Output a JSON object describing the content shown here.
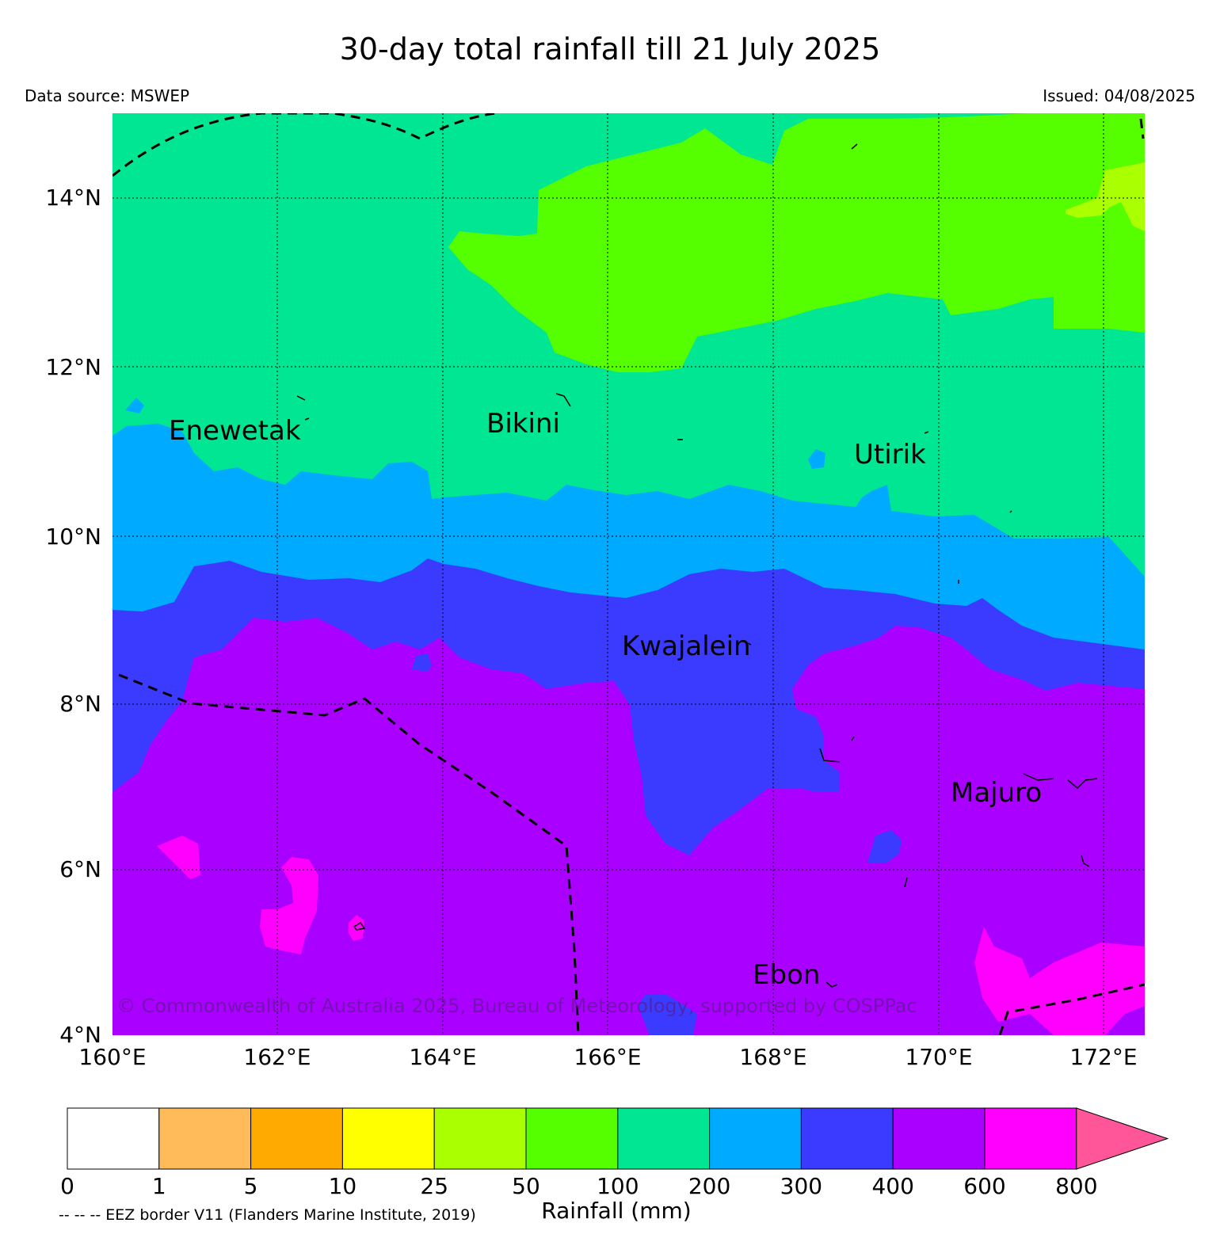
{
  "title": "30-day total rainfall till 21 July 2025",
  "data_source": "Data source: MSWEP",
  "issued": "Issued: 04/08/2025",
  "copyright": "© Commonwealth of Australia 2025, Bureau of Meteorology, supported by COSPPac",
  "eez_note": "-- -- -- EEZ border V11 (Flanders Marine Institute, 2019)",
  "map": {
    "lon_range": [
      160,
      172.5
    ],
    "lat_range": [
      4,
      15
    ],
    "lat_labels": [
      "14°N",
      "12°N",
      "10°N",
      "8°N",
      "6°N",
      "4°N"
    ],
    "lon_labels": [
      "160°E",
      "162°E",
      "164°E",
      "166°E",
      "168°E",
      "170°E",
      "172°E"
    ],
    "places": [
      "Enewetak",
      "Bikini",
      "Utirik",
      "Kwajalein",
      "Majuro",
      "Ebon"
    ]
  },
  "colorbar": {
    "label": "Rainfall (mm)",
    "ticks": [
      "0",
      "1",
      "5",
      "10",
      "25",
      "50",
      "100",
      "200",
      "300",
      "400",
      "600",
      "800"
    ],
    "colors": [
      "#ffffff",
      "#ffbb5a",
      "#ffaa00",
      "#ffff00",
      "#aaff00",
      "#55ff00",
      "#00e693",
      "#00aaff",
      "#3b3bff",
      "#aa00ff",
      "#ff00ff",
      "#ff5599"
    ]
  }
}
